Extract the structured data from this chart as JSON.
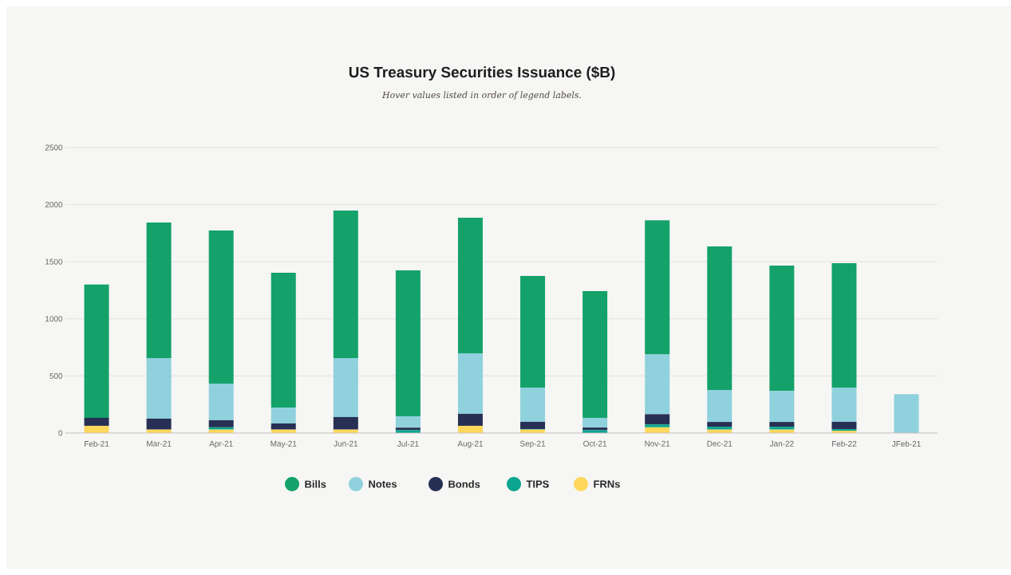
{
  "chart_data": {
    "type": "bar",
    "stacked": true,
    "title": "US Treasury Securities Issuance ($B)",
    "subtitle": "Hover values listed in order of legend labels.",
    "categories": [
      "Feb-21",
      "Mar-21",
      "Apr-21",
      "May-21",
      "Jun-21",
      "Jul-21",
      "Aug-21",
      "Sep-21",
      "Oct-21",
      "Nov-21",
      "Dec-21",
      "Jan-22",
      "Feb-22",
      "JFeb-21"
    ],
    "series": [
      {
        "name": "FRNs",
        "color": "#fdd85c",
        "values": [
          63,
          30,
          30,
          30,
          30,
          null,
          63,
          30,
          0,
          50,
          30,
          30,
          20,
          0
        ]
      },
      {
        "name": "TIPS",
        "color": "#0aa68f",
        "values": [
          0,
          0,
          20,
          0,
          0,
          25,
          0,
          5,
          25,
          25,
          25,
          25,
          15,
          0
        ]
      },
      {
        "name": "Bonds",
        "color": "#273054",
        "values": [
          70,
          96,
          62,
          54,
          110,
          22,
          105,
          63,
          23,
          90,
          42,
          42,
          63,
          0
        ]
      },
      {
        "name": "Notes",
        "color": "#8fd1dc",
        "values": [
          0,
          530,
          321,
          139,
          516,
          100,
          530,
          300,
          85,
          523,
          280,
          272,
          300,
          340
        ]
      },
      {
        "name": "Bills",
        "color": "#14a26a",
        "values": [
          1167,
          1188,
          1341,
          1181,
          1292,
          1278,
          1188,
          978,
          1110,
          1174,
          1257,
          1097,
          1089,
          0
        ]
      }
    ],
    "ylim": [
      0,
      2500
    ],
    "yticks": [
      0,
      500,
      1000,
      1500,
      2000,
      2500
    ],
    "grid": "y",
    "legend": "bottom"
  }
}
